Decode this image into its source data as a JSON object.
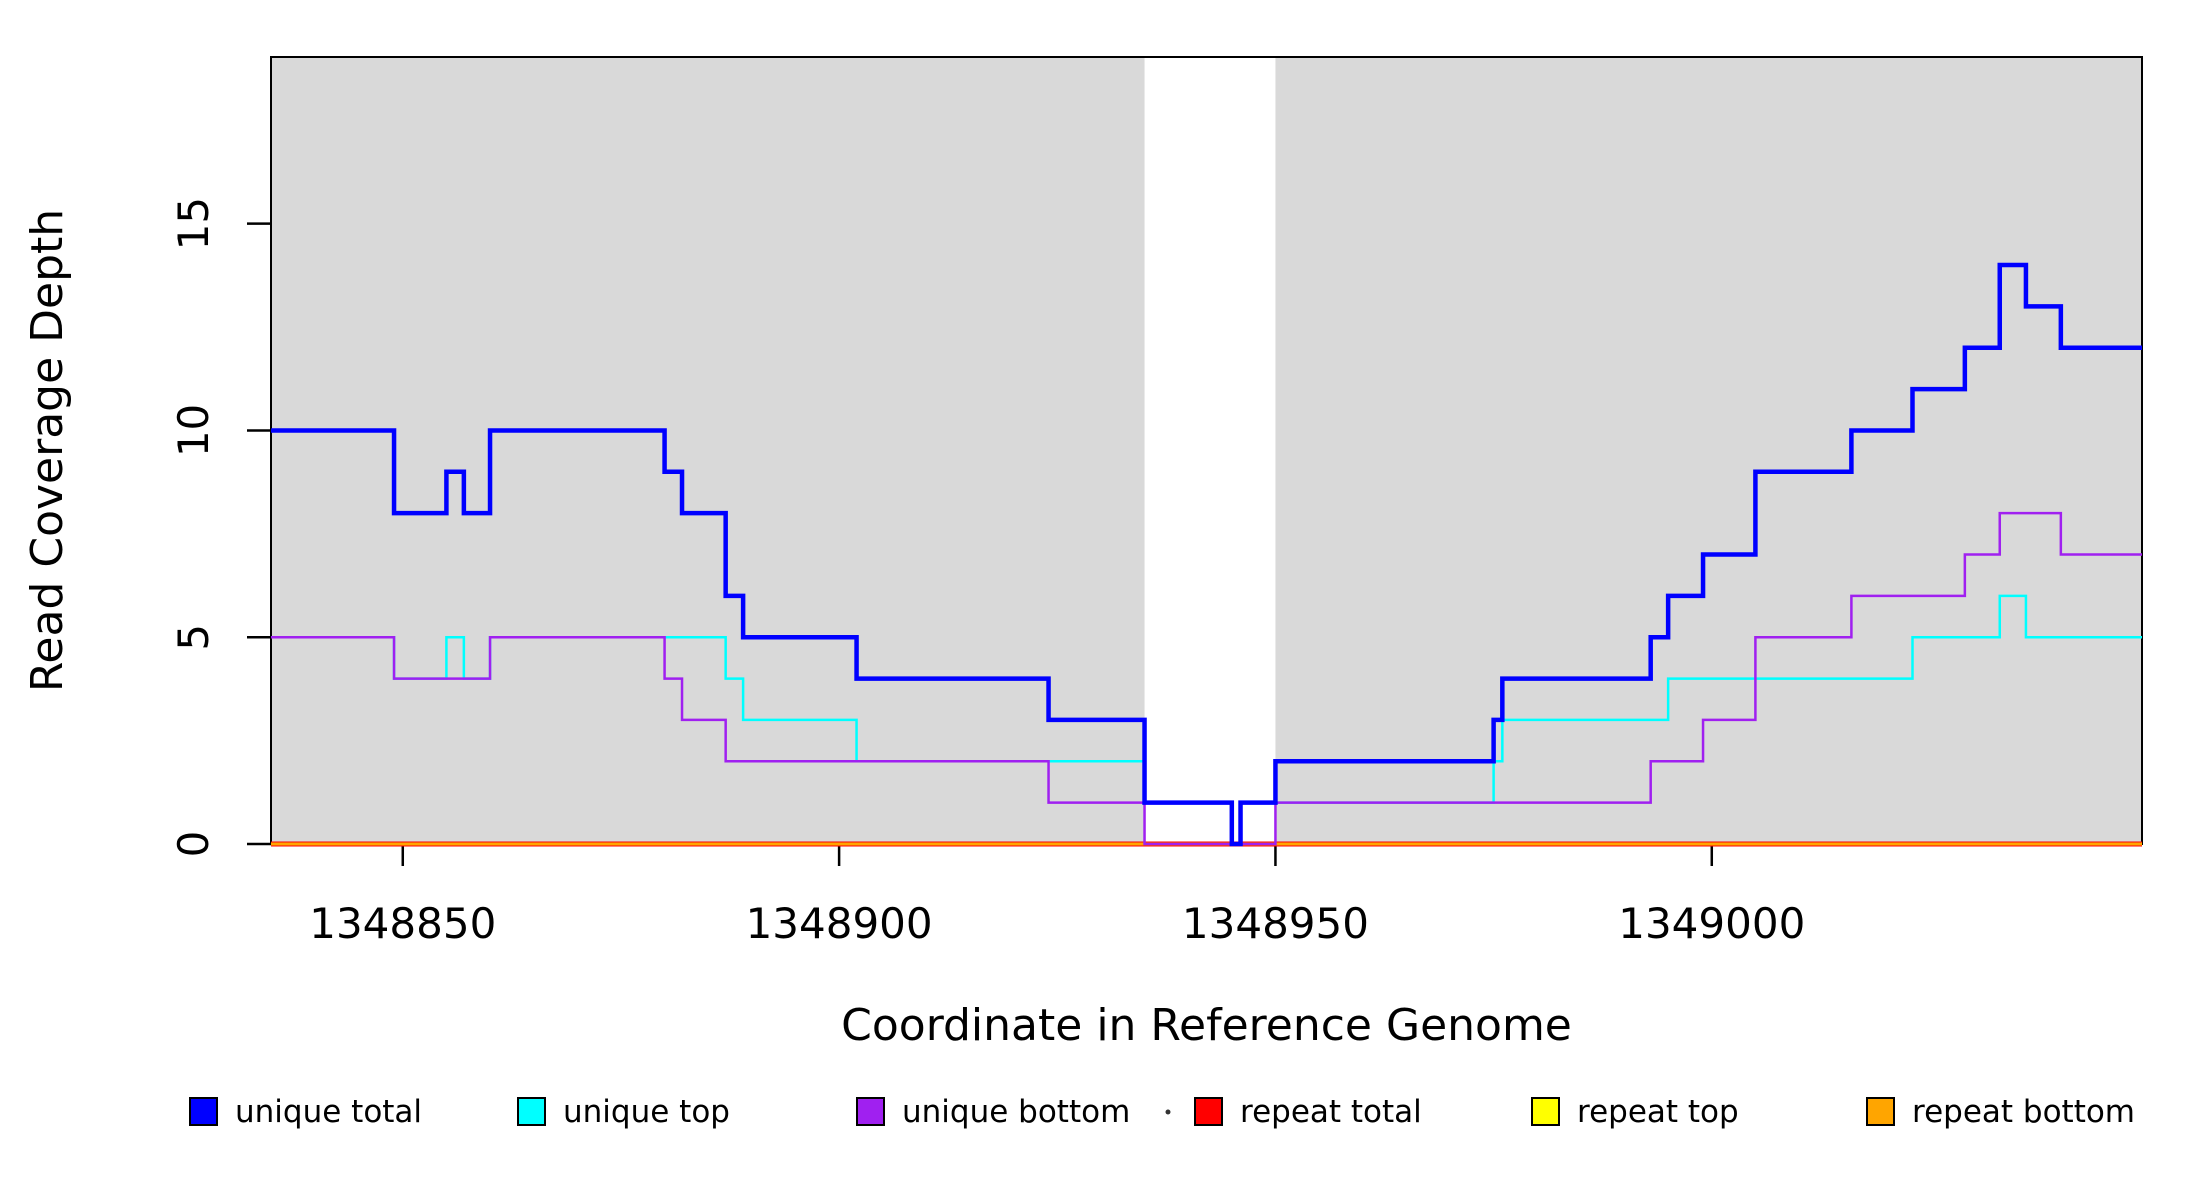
{
  "figure": {
    "title": "",
    "xlabel": "Coordinate in Reference Genome",
    "ylabel": "Read Coverage Depth"
  },
  "chart_data": {
    "type": "line",
    "subtype": "step",
    "title": "",
    "xlabel": "Coordinate in Reference Genome",
    "ylabel": "Read Coverage Depth",
    "xlim": [
      1348834.9,
      1349049.3
    ],
    "ylim": [
      0,
      19.03
    ],
    "x_ticks": [
      1348850,
      1348900,
      1348950,
      1349000
    ],
    "y_ticks": [
      0,
      5,
      10,
      15
    ],
    "grid": false,
    "legend_position": "bottom",
    "colors": {
      "background_shading": "#D9D9D9",
      "axis": "#000000",
      "unique_total": "#0000FF",
      "unique_top": "#00FFFF",
      "unique_bottom": "#A020F0",
      "repeat_total": "#FF0000",
      "repeat_top": "#FFFF00",
      "repeat_bottom": "#FFA500"
    },
    "shaded_regions": [
      {
        "name": "left-shaded-region",
        "x0": 1348834.9,
        "x1": 1348935,
        "color": "#D9D9D9"
      },
      {
        "name": "right-shaded-region",
        "x0": 1348950,
        "x1": 1349049.3,
        "color": "#D9D9D9"
      }
    ],
    "unshaded_gap": {
      "x0": 1348935,
      "x1": 1348950
    },
    "series": [
      {
        "name": "unique total",
        "color": "#0000FF",
        "line_width": 4.5,
        "steps": [
          [
            1348835,
            10
          ],
          [
            1348849,
            8
          ],
          [
            1348855,
            9
          ],
          [
            1348857,
            8
          ],
          [
            1348860,
            10
          ],
          [
            1348880,
            9
          ],
          [
            1348882,
            8
          ],
          [
            1348887,
            6
          ],
          [
            1348889,
            5
          ],
          [
            1348902,
            4
          ],
          [
            1348924,
            3
          ],
          [
            1348935,
            1
          ],
          [
            1348945,
            0
          ],
          [
            1348946,
            1
          ],
          [
            1348950,
            2
          ],
          [
            1348975,
            3
          ],
          [
            1348976,
            4
          ],
          [
            1348993,
            5
          ],
          [
            1348995,
            6
          ],
          [
            1348999,
            7
          ],
          [
            1349005,
            9
          ],
          [
            1349016,
            10
          ],
          [
            1349023,
            11
          ],
          [
            1349029,
            12
          ],
          [
            1349033,
            14
          ],
          [
            1349036,
            13
          ],
          [
            1349040,
            12
          ]
        ]
      },
      {
        "name": "unique top",
        "color": "#00FFFF",
        "line_width": 2.5,
        "steps": [
          [
            1348835,
            5
          ],
          [
            1348849,
            4
          ],
          [
            1348855,
            5
          ],
          [
            1348857,
            4
          ],
          [
            1348860,
            5
          ],
          [
            1348887,
            4
          ],
          [
            1348889,
            3
          ],
          [
            1348902,
            2
          ],
          [
            1348935,
            1
          ],
          [
            1348945,
            0
          ],
          [
            1348946,
            1
          ],
          [
            1348975,
            2
          ],
          [
            1348976,
            3
          ],
          [
            1348995,
            4
          ],
          [
            1349023,
            5
          ],
          [
            1349033,
            6
          ],
          [
            1349036,
            5
          ]
        ]
      },
      {
        "name": "unique bottom",
        "color": "#A020F0",
        "line_width": 2.5,
        "steps": [
          [
            1348835,
            5
          ],
          [
            1348849,
            4
          ],
          [
            1348860,
            5
          ],
          [
            1348880,
            4
          ],
          [
            1348882,
            3
          ],
          [
            1348887,
            2
          ],
          [
            1348924,
            1
          ],
          [
            1348935,
            0
          ],
          [
            1348950,
            1
          ],
          [
            1348993,
            2
          ],
          [
            1348999,
            3
          ],
          [
            1349005,
            5
          ],
          [
            1349016,
            6
          ],
          [
            1349029,
            7
          ],
          [
            1349033,
            8
          ],
          [
            1349040,
            7
          ]
        ]
      },
      {
        "name": "repeat total",
        "color": "#FF0000",
        "line_width": 5,
        "steps": [
          [
            1348835,
            0
          ]
        ]
      },
      {
        "name": "repeat top",
        "color": "#FFFF00",
        "line_width": 3,
        "steps": [
          [
            1348835,
            0
          ]
        ]
      },
      {
        "name": "repeat bottom",
        "color": "#FFA500",
        "line_width": 3,
        "steps": [
          [
            1348835,
            0
          ]
        ]
      }
    ],
    "draw_order": [
      "repeat total",
      "repeat top",
      "repeat bottom",
      "unique top",
      "unique bottom",
      "unique total"
    ],
    "legend": {
      "items": [
        {
          "label": "unique total",
          "color": "#0000FF"
        },
        {
          "label": "unique top",
          "color": "#00FFFF"
        },
        {
          "label": "unique bottom",
          "color": "#A020F0"
        },
        {
          "label": "repeat total",
          "color": "#FF0000"
        },
        {
          "label": "repeat top",
          "color": "#FFFF00"
        },
        {
          "label": "repeat bottom",
          "color": "#FFA500"
        }
      ]
    }
  }
}
